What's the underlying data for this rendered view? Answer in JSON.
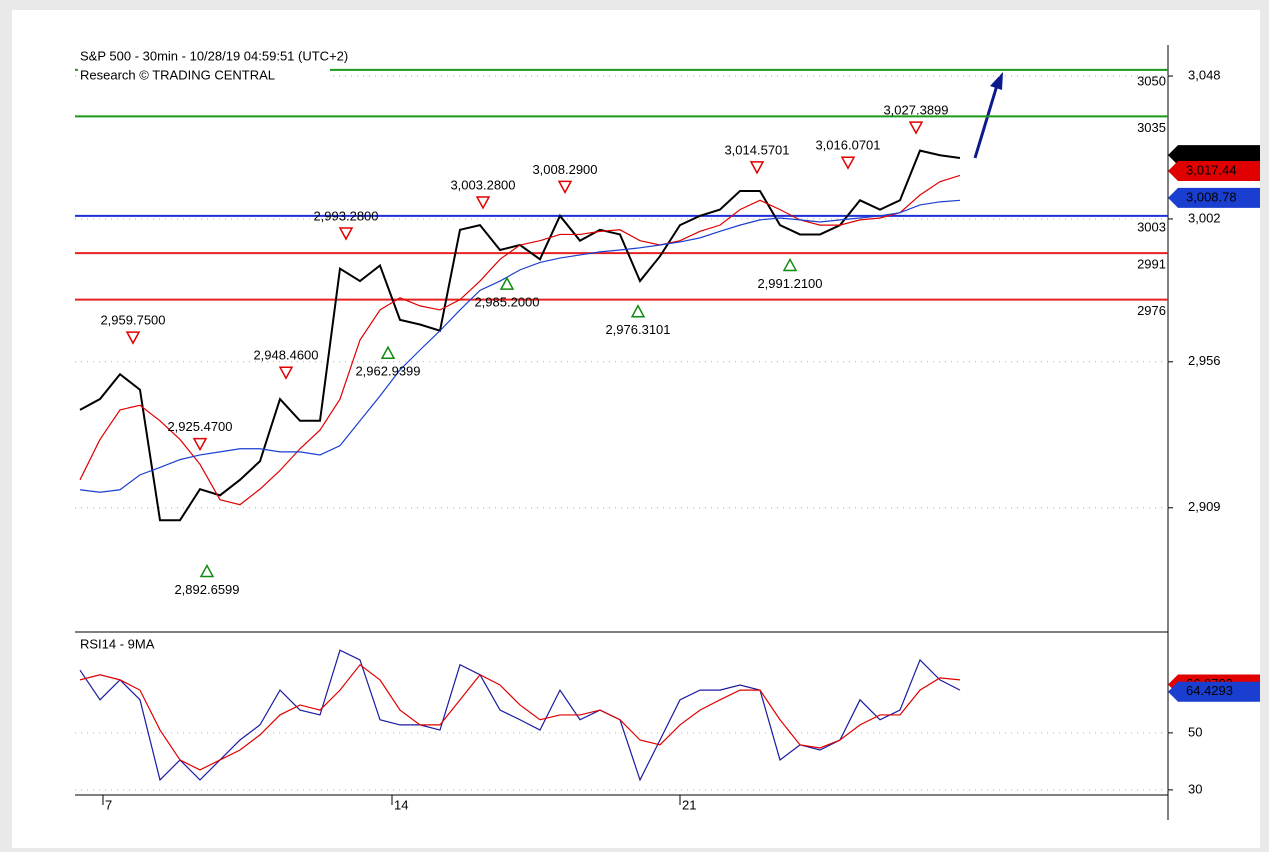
{
  "chart_data": [
    {
      "type": "line",
      "title": "S&P 500 - 30min - 10/28/19 04:59:51 (UTC+2)",
      "subtitle": "Research © TRADING CENTRAL",
      "x": [
        0,
        1,
        2,
        3,
        4,
        5,
        6,
        7,
        8,
        9,
        10,
        11,
        12,
        13,
        14,
        15,
        16,
        17,
        18,
        19,
        20,
        21,
        22,
        23,
        24,
        25,
        26,
        27,
        28,
        29,
        30,
        31,
        32,
        33,
        34,
        35,
        36,
        37,
        38,
        39,
        40,
        41,
        42,
        43,
        44
      ],
      "xlim": [
        -0.25,
        54.4
      ],
      "xticks": [
        {
          "value": 1.15,
          "label": "7"
        },
        {
          "value": 15.6,
          "label": "14"
        },
        {
          "value": 30,
          "label": "21"
        }
      ],
      "ylim": [
        2869,
        3058
      ],
      "yticks": [
        {
          "value": 2909,
          "label": "2,909"
        },
        {
          "value": 2956,
          "label": "2,956"
        },
        {
          "value": 3002,
          "label": "3,002"
        },
        {
          "value": 3048,
          "label": "3,048"
        }
      ],
      "grid": true,
      "series": [
        {
          "color": "#000000",
          "values": [
            2940.5,
            2944,
            2952,
            2947,
            2905,
            2905,
            2915,
            2913,
            2918,
            2924,
            2944,
            2937,
            2937,
            2986,
            2982,
            2987,
            2969.5,
            2968,
            2966,
            2998.5,
            3000,
            2992,
            2993.6,
            2989,
            3003,
            2995,
            2998.5,
            2997,
            2982,
            2990,
            3000,
            3003,
            3005,
            3011,
            3011,
            3000,
            2997,
            2997,
            3000,
            3008,
            3005,
            3008,
            3024,
            3022.5,
            3021.6
          ]
        },
        {
          "color": "#e00000",
          "values": [
            2918,
            2931,
            2940.5,
            2942,
            2937,
            2931,
            2923,
            2911.6,
            2910,
            2915,
            2921,
            2928,
            2934,
            2944,
            2963,
            2972.7,
            2976.6,
            2974,
            2972.7,
            2976,
            2982,
            2989,
            2993.6,
            2995,
            2997,
            2997,
            2998,
            2998.5,
            2995,
            2993.6,
            2995,
            2998,
            3000,
            3005,
            3008,
            3005,
            3001.7,
            3000,
            3000,
            3001.7,
            3002.3,
            3004,
            3009.7,
            3014,
            3016
          ]
        },
        {
          "color": "#1a3fd0",
          "values": [
            2914.8,
            2914,
            2914.8,
            2919.6,
            2922,
            2924.5,
            2926,
            2927,
            2928,
            2928,
            2927,
            2927,
            2926,
            2929,
            2937,
            2945,
            2953.4,
            2959.8,
            2966,
            2972.7,
            2979,
            2982,
            2985.6,
            2988,
            2989.4,
            2990.4,
            2991.4,
            2992,
            2992.7,
            2993.6,
            2994.6,
            2995.9,
            2998,
            3000,
            3001.7,
            3002.3,
            3001.7,
            3001,
            3001.7,
            3002.3,
            3003,
            3004,
            3006.5,
            3007.5,
            3008
          ]
        }
      ],
      "levels": [
        {
          "value": 3050,
          "color": "#1a9a1a"
        },
        {
          "value": 3035,
          "color": "#1a9a1a"
        },
        {
          "value": 3003,
          "color": "#1e2ed8"
        },
        {
          "value": 2991,
          "color": "#e82020"
        },
        {
          "value": 2976,
          "color": "#e82020"
        }
      ],
      "annotations": [
        {
          "value": 2959.75,
          "label": "2,959.7500",
          "x": 2.65,
          "kind": "high"
        },
        {
          "value": 2925.47,
          "label": "2,925.4700",
          "x": 6,
          "kind": "high"
        },
        {
          "value": 2892.6599,
          "label": "2,892.6599",
          "x": 6.35,
          "kind": "low"
        },
        {
          "value": 2948.46,
          "label": "2,948.4600",
          "x": 10.3,
          "kind": "high"
        },
        {
          "value": 2993.28,
          "label": "2,993.2800",
          "x": 13.3,
          "kind": "high"
        },
        {
          "value": 2962.9399,
          "label": "2,962.9399",
          "x": 15.4,
          "kind": "low"
        },
        {
          "value": 3003.28,
          "label": "3,003.2800",
          "x": 20.15,
          "kind": "high"
        },
        {
          "value": 2985.2,
          "label": "2,985.2000",
          "x": 21.35,
          "kind": "low"
        },
        {
          "value": 3008.29,
          "label": "3,008.2900",
          "x": 24.25,
          "kind": "high"
        },
        {
          "value": 2976.3101,
          "label": "2,976.3101",
          "x": 27.9,
          "kind": "low"
        },
        {
          "value": 3014.5701,
          "label": "3,014.5701",
          "x": 33.85,
          "kind": "high"
        },
        {
          "value": 2991.21,
          "label": "2,991.2100",
          "x": 35.5,
          "kind": "low"
        },
        {
          "value": 3016.0701,
          "label": "3,016.0701",
          "x": 38.4,
          "kind": "high"
        },
        {
          "value": 3027.3899,
          "label": "3,027.3899",
          "x": 41.8,
          "kind": "high"
        }
      ],
      "last_values": [
        {
          "value": 3022.55,
          "label": "3,022.55",
          "color": "#000000"
        },
        {
          "value": 3017.44,
          "label": "3,017.44",
          "color": "#e00000"
        },
        {
          "value": 3008.78,
          "label": "3,008.78",
          "color": "#1a3fd0"
        }
      ]
    },
    {
      "type": "line",
      "title": "RSI14 - 9MA",
      "x": [
        0,
        1,
        2,
        3,
        4,
        5,
        6,
        7,
        8,
        9,
        10,
        11,
        12,
        13,
        14,
        15,
        16,
        17,
        18,
        19,
        20,
        21,
        22,
        23,
        24,
        25,
        26,
        27,
        28,
        29,
        30,
        31,
        32,
        33,
        34,
        35,
        36,
        37,
        38,
        39,
        40,
        41,
        42,
        43,
        44
      ],
      "xlim": [
        -0.25,
        54.4
      ],
      "ylim": [
        28.2,
        85.4
      ],
      "yticks": [
        30,
        50
      ],
      "grid": true,
      "series": [
        {
          "color": "#1a1aa0",
          "values": [
            72,
            61.6,
            68.6,
            61.6,
            33.5,
            40.5,
            33.5,
            40.5,
            47.5,
            52.8,
            65,
            58,
            56.3,
            79,
            75.6,
            54.6,
            52.8,
            52.8,
            51,
            73.9,
            70.4,
            58,
            54.6,
            51,
            65,
            54.6,
            58,
            54.6,
            33.5,
            47.5,
            61.6,
            65,
            65,
            66.8,
            65,
            40.5,
            45.8,
            44,
            47.5,
            61.6,
            54.6,
            58,
            75.6,
            68.6,
            65
          ]
        },
        {
          "color": "#e00000",
          "values": [
            68.6,
            70.4,
            68.6,
            65,
            51,
            40.5,
            37,
            40.5,
            44,
            49.3,
            56.3,
            59.8,
            58,
            65,
            73.9,
            68.6,
            58,
            52.8,
            52.8,
            61.6,
            70.4,
            66.8,
            59.8,
            54.6,
            56.3,
            56.3,
            58,
            54.6,
            47.5,
            45.8,
            52.8,
            58,
            61.6,
            65,
            65,
            54.6,
            45.8,
            44.7,
            47.5,
            52.8,
            56.3,
            56.3,
            65,
            69.3,
            68.6
          ]
        }
      ],
      "last_values": [
        {
          "value": 66.9783,
          "label": "66.9783",
          "color": "#e00000"
        },
        {
          "value": 64.4293,
          "label": "64.4293",
          "color": "#1a3fd0"
        }
      ]
    }
  ]
}
